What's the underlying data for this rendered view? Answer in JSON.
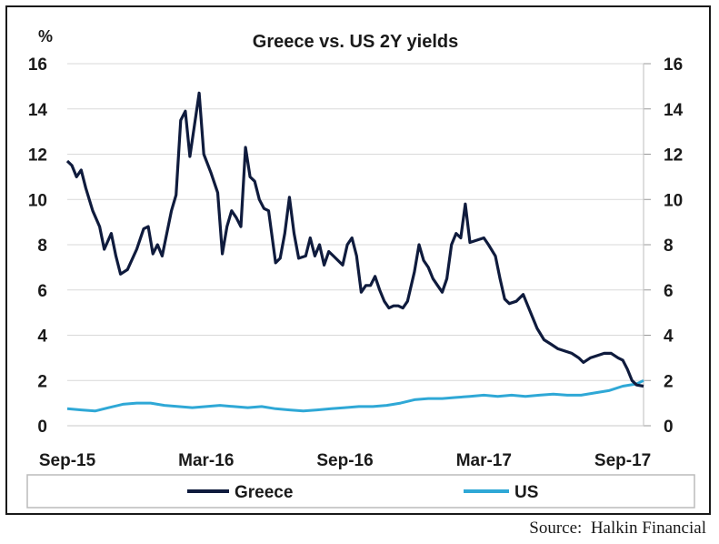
{
  "chart_data": {
    "type": "line",
    "title": "Greece vs. US 2Y yields",
    "y_unit_label": "%",
    "ylim": [
      0,
      16
    ],
    "y_ticks": [
      "0",
      "2",
      "4",
      "6",
      "8",
      "10",
      "12",
      "14",
      "16"
    ],
    "x_ticks": [
      "Sep-15",
      "Mar-16",
      "Sep-16",
      "Mar-17",
      "Sep-17"
    ],
    "grid": true,
    "legend_placement": "bottom",
    "series": [
      {
        "name": "Greece",
        "color": "#0f1b3d",
        "points": [
          [
            0,
            11.7
          ],
          [
            0.1,
            11.5
          ],
          [
            0.2,
            11.0
          ],
          [
            0.3,
            11.3
          ],
          [
            0.4,
            10.5
          ],
          [
            0.55,
            9.5
          ],
          [
            0.7,
            8.8
          ],
          [
            0.8,
            7.8
          ],
          [
            0.95,
            8.5
          ],
          [
            1.05,
            7.5
          ],
          [
            1.15,
            6.7
          ],
          [
            1.3,
            6.9
          ],
          [
            1.5,
            7.8
          ],
          [
            1.65,
            8.7
          ],
          [
            1.75,
            8.8
          ],
          [
            1.85,
            7.6
          ],
          [
            1.95,
            8.0
          ],
          [
            2.05,
            7.5
          ],
          [
            2.15,
            8.5
          ],
          [
            2.25,
            9.5
          ],
          [
            2.35,
            10.2
          ],
          [
            2.45,
            13.5
          ],
          [
            2.55,
            13.9
          ],
          [
            2.65,
            11.9
          ],
          [
            2.75,
            13.3
          ],
          [
            2.85,
            14.7
          ],
          [
            2.95,
            12.0
          ],
          [
            3.1,
            11.2
          ],
          [
            3.25,
            10.3
          ],
          [
            3.35,
            7.6
          ],
          [
            3.45,
            8.8
          ],
          [
            3.55,
            9.5
          ],
          [
            3.65,
            9.2
          ],
          [
            3.75,
            8.8
          ],
          [
            3.85,
            12.3
          ],
          [
            3.95,
            11.0
          ],
          [
            4.05,
            10.8
          ],
          [
            4.15,
            10.0
          ],
          [
            4.25,
            9.6
          ],
          [
            4.35,
            9.5
          ],
          [
            4.5,
            7.2
          ],
          [
            4.6,
            7.4
          ],
          [
            4.7,
            8.5
          ],
          [
            4.8,
            10.1
          ],
          [
            4.9,
            8.5
          ],
          [
            5.0,
            7.4
          ],
          [
            5.15,
            7.5
          ],
          [
            5.25,
            8.3
          ],
          [
            5.35,
            7.5
          ],
          [
            5.45,
            8.0
          ],
          [
            5.55,
            7.1
          ],
          [
            5.65,
            7.7
          ],
          [
            5.75,
            7.5
          ],
          [
            5.85,
            7.3
          ],
          [
            5.95,
            7.1
          ],
          [
            6.05,
            8.0
          ],
          [
            6.15,
            8.3
          ],
          [
            6.25,
            7.5
          ],
          [
            6.35,
            5.9
          ],
          [
            6.45,
            6.2
          ],
          [
            6.55,
            6.2
          ],
          [
            6.65,
            6.6
          ],
          [
            6.75,
            6.0
          ],
          [
            6.85,
            5.5
          ],
          [
            6.95,
            5.2
          ],
          [
            7.05,
            5.3
          ],
          [
            7.15,
            5.3
          ],
          [
            7.25,
            5.2
          ],
          [
            7.35,
            5.5
          ],
          [
            7.5,
            6.8
          ],
          [
            7.6,
            8.0
          ],
          [
            7.7,
            7.3
          ],
          [
            7.8,
            7.0
          ],
          [
            7.9,
            6.5
          ],
          [
            8.0,
            6.2
          ],
          [
            8.1,
            5.9
          ],
          [
            8.2,
            6.5
          ],
          [
            8.3,
            8.0
          ],
          [
            8.4,
            8.5
          ],
          [
            8.5,
            8.3
          ],
          [
            8.6,
            9.8
          ],
          [
            8.7,
            8.1
          ],
          [
            8.85,
            8.2
          ],
          [
            9.0,
            8.3
          ],
          [
            9.1,
            8.0
          ],
          [
            9.25,
            7.5
          ],
          [
            9.35,
            6.5
          ],
          [
            9.45,
            5.6
          ],
          [
            9.55,
            5.4
          ],
          [
            9.7,
            5.5
          ],
          [
            9.85,
            5.8
          ],
          [
            9.95,
            5.3
          ],
          [
            10.05,
            4.8
          ],
          [
            10.15,
            4.3
          ],
          [
            10.3,
            3.8
          ],
          [
            10.45,
            3.6
          ],
          [
            10.6,
            3.4
          ],
          [
            10.75,
            3.3
          ],
          [
            10.9,
            3.2
          ],
          [
            11.05,
            3.0
          ],
          [
            11.15,
            2.8
          ],
          [
            11.3,
            3.0
          ],
          [
            11.45,
            3.1
          ],
          [
            11.6,
            3.2
          ],
          [
            11.75,
            3.2
          ],
          [
            11.9,
            3.0
          ],
          [
            12.0,
            2.9
          ],
          [
            12.1,
            2.5
          ],
          [
            12.2,
            2.0
          ],
          [
            12.3,
            1.8
          ],
          [
            12.45,
            1.75
          ]
        ]
      },
      {
        "name": "US",
        "color": "#2fa8d6",
        "points": [
          [
            0,
            0.75
          ],
          [
            0.3,
            0.7
          ],
          [
            0.6,
            0.65
          ],
          [
            0.9,
            0.8
          ],
          [
            1.2,
            0.95
          ],
          [
            1.5,
            1.0
          ],
          [
            1.8,
            1.0
          ],
          [
            2.1,
            0.9
          ],
          [
            2.4,
            0.85
          ],
          [
            2.7,
            0.8
          ],
          [
            3.0,
            0.85
          ],
          [
            3.3,
            0.9
          ],
          [
            3.6,
            0.85
          ],
          [
            3.9,
            0.8
          ],
          [
            4.2,
            0.85
          ],
          [
            4.5,
            0.75
          ],
          [
            4.8,
            0.7
          ],
          [
            5.1,
            0.65
          ],
          [
            5.4,
            0.7
          ],
          [
            5.7,
            0.75
          ],
          [
            6.0,
            0.8
          ],
          [
            6.3,
            0.85
          ],
          [
            6.6,
            0.85
          ],
          [
            6.9,
            0.9
          ],
          [
            7.2,
            1.0
          ],
          [
            7.5,
            1.15
          ],
          [
            7.8,
            1.2
          ],
          [
            8.1,
            1.2
          ],
          [
            8.4,
            1.25
          ],
          [
            8.7,
            1.3
          ],
          [
            9.0,
            1.35
          ],
          [
            9.3,
            1.3
          ],
          [
            9.6,
            1.35
          ],
          [
            9.9,
            1.3
          ],
          [
            10.2,
            1.35
          ],
          [
            10.5,
            1.4
          ],
          [
            10.8,
            1.35
          ],
          [
            11.1,
            1.35
          ],
          [
            11.4,
            1.45
          ],
          [
            11.7,
            1.55
          ],
          [
            12.0,
            1.75
          ],
          [
            12.3,
            1.85
          ],
          [
            12.45,
            2.0
          ]
        ]
      }
    ]
  },
  "source": "Source:  Halkin Financial"
}
